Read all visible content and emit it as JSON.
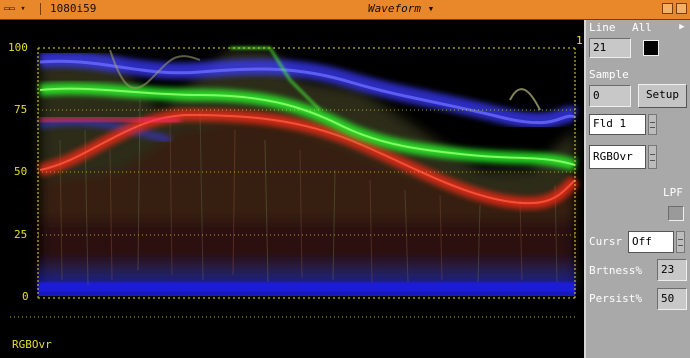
{
  "titlebar": {
    "menu_icon": "menu-icon",
    "format": "1080i59",
    "title": "Waveform",
    "colors": {
      "bar": "#e8882b"
    }
  },
  "scope": {
    "y_ticks": [
      "100",
      "75",
      "50",
      "25",
      "0"
    ],
    "right_marker": "1",
    "mode_label": "RGBOvr",
    "colors": {
      "graticule": "#e6df2a",
      "red": "#ff3020",
      "green": "#40ff40",
      "blue": "#3040ff"
    }
  },
  "panel": {
    "line_label": "Line",
    "line_scope": "All",
    "line_value": "21",
    "sample_label": "Sample",
    "sample_value": "0",
    "setup_button": "Setup",
    "field_select": "Fld 1",
    "mode_select": "RGBOvr",
    "lpf_label": "LPF",
    "cursor_label": "Cursr",
    "cursor_value": "Off",
    "brightness_label": "Brtness%",
    "brightness_value": "23",
    "persist_label": "Persist%",
    "persist_value": "50"
  }
}
